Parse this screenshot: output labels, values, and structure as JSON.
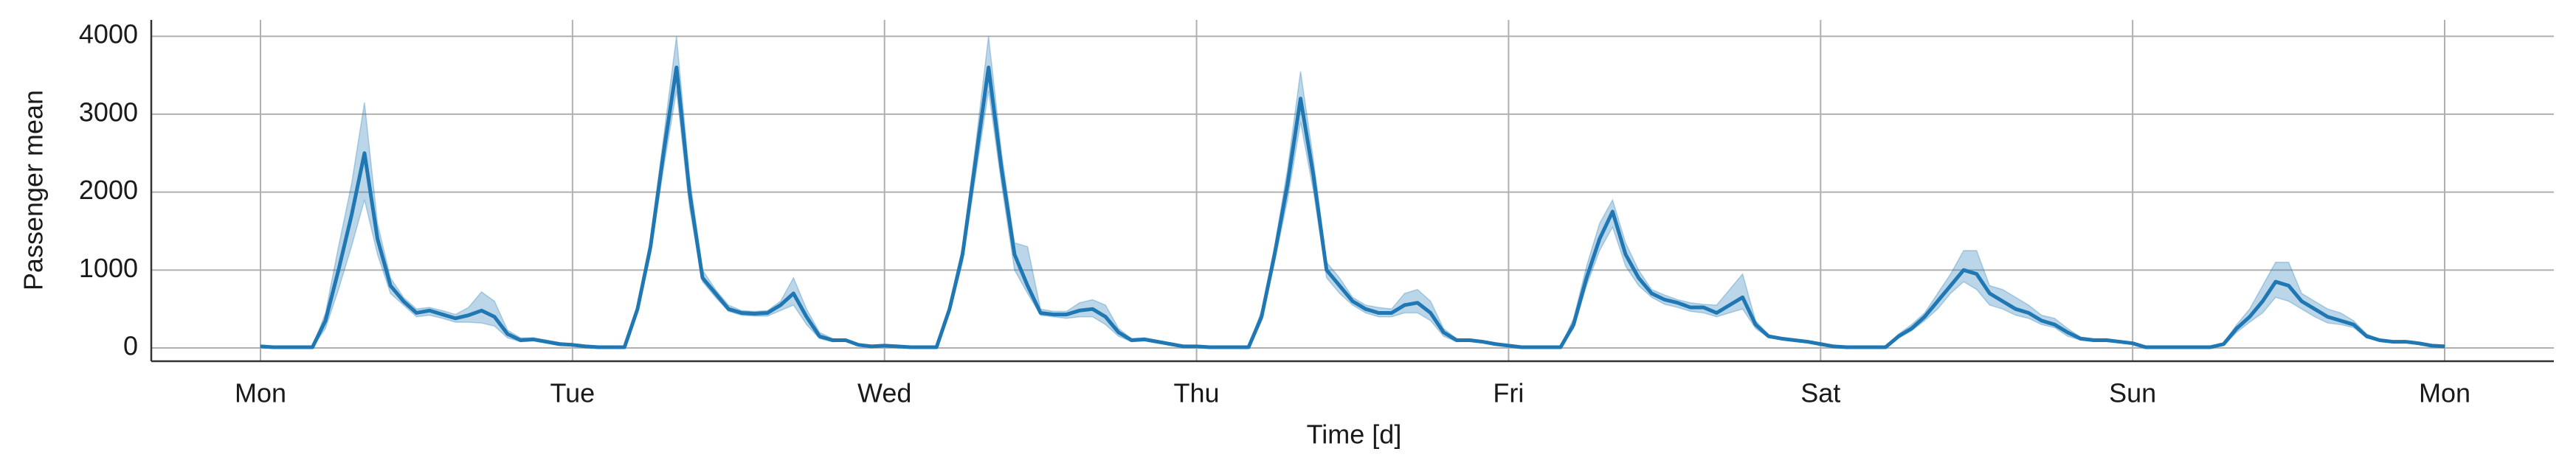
{
  "chart_data": {
    "type": "line",
    "x_label": "Time [d]",
    "y_label": "Passenger mean",
    "xlim": [
      -8.4,
      176.4
    ],
    "ylim": [
      -170,
      4210
    ],
    "xticks": [
      {
        "value": 0,
        "label": "Mon"
      },
      {
        "value": 24,
        "label": "Tue"
      },
      {
        "value": 48,
        "label": "Wed"
      },
      {
        "value": 72,
        "label": "Thu"
      },
      {
        "value": 96,
        "label": "Fri"
      },
      {
        "value": 120,
        "label": "Sat"
      },
      {
        "value": 144,
        "label": "Sun"
      },
      {
        "value": 168,
        "label": "Mon"
      }
    ],
    "yticks": [
      0,
      1000,
      2000,
      3000,
      4000
    ],
    "grid": true,
    "x": [
      0,
      1,
      2,
      3,
      4,
      5,
      6,
      7,
      8,
      9,
      10,
      11,
      12,
      13,
      14,
      15,
      16,
      17,
      18,
      19,
      20,
      21,
      22,
      23,
      24,
      25,
      26,
      27,
      28,
      29,
      30,
      31,
      32,
      33,
      34,
      35,
      36,
      37,
      38,
      39,
      40,
      41,
      42,
      43,
      44,
      45,
      46,
      47,
      48,
      49,
      50,
      51,
      52,
      53,
      54,
      55,
      56,
      57,
      58,
      59,
      60,
      61,
      62,
      63,
      64,
      65,
      66,
      67,
      68,
      69,
      70,
      71,
      72,
      73,
      74,
      75,
      76,
      77,
      78,
      79,
      80,
      81,
      82,
      83,
      84,
      85,
      86,
      87,
      88,
      89,
      90,
      91,
      92,
      93,
      94,
      95,
      96,
      97,
      98,
      99,
      100,
      101,
      102,
      103,
      104,
      105,
      106,
      107,
      108,
      109,
      110,
      111,
      112,
      113,
      114,
      115,
      116,
      117,
      118,
      119,
      120,
      121,
      122,
      123,
      124,
      125,
      126,
      127,
      128,
      129,
      130,
      131,
      132,
      133,
      134,
      135,
      136,
      137,
      138,
      139,
      140,
      141,
      142,
      143,
      144,
      145,
      146,
      147,
      148,
      149,
      150,
      151,
      152,
      153,
      154,
      155,
      156,
      157,
      158,
      159,
      160,
      161,
      162,
      163,
      164,
      165,
      166,
      167,
      168
    ],
    "series": [
      {
        "color": "#1f77b4",
        "values": [
          20,
          10,
          10,
          10,
          10,
          350,
          1000,
          1700,
          2500,
          1400,
          800,
          600,
          450,
          480,
          430,
          380,
          420,
          480,
          400,
          180,
          100,
          110,
          80,
          50,
          40,
          20,
          10,
          10,
          10,
          500,
          1300,
          2500,
          3600,
          2000,
          900,
          700,
          500,
          450,
          440,
          450,
          550,
          700,
          400,
          150,
          100,
          100,
          40,
          20,
          30,
          20,
          10,
          10,
          10,
          500,
          1200,
          2400,
          3600,
          2300,
          1200,
          800,
          450,
          430,
          430,
          480,
          500,
          400,
          200,
          100,
          110,
          80,
          50,
          20,
          20,
          10,
          10,
          10,
          10,
          400,
          1200,
          2100,
          3200,
          2200,
          1000,
          800,
          600,
          500,
          450,
          450,
          550,
          580,
          450,
          200,
          100,
          100,
          80,
          50,
          30,
          10,
          10,
          10,
          10,
          300,
          900,
          1400,
          1750,
          1200,
          900,
          700,
          620,
          580,
          520,
          520,
          450,
          550,
          650,
          300,
          150,
          120,
          100,
          80,
          50,
          20,
          10,
          10,
          10,
          10,
          150,
          250,
          400,
          600,
          800,
          1000,
          950,
          700,
          600,
          500,
          450,
          350,
          300,
          200,
          120,
          100,
          100,
          80,
          60,
          10,
          10,
          10,
          10,
          10,
          10,
          50,
          250,
          400,
          600,
          850,
          800,
          600,
          500,
          400,
          350,
          300,
          150,
          100,
          80,
          80,
          60,
          30,
          20
        ],
        "ci_upper": [
          30,
          15,
          15,
          15,
          15,
          450,
          1300,
          2100,
          3150,
          1600,
          900,
          650,
          500,
          520,
          480,
          430,
          520,
          720,
          600,
          230,
          130,
          130,
          100,
          70,
          50,
          30,
          15,
          15,
          15,
          550,
          1400,
          2700,
          4000,
          2200,
          1000,
          750,
          550,
          480,
          470,
          480,
          600,
          900,
          500,
          200,
          120,
          110,
          50,
          30,
          40,
          30,
          15,
          15,
          15,
          550,
          1300,
          2600,
          4000,
          2500,
          1350,
          1300,
          500,
          470,
          470,
          580,
          620,
          550,
          250,
          120,
          130,
          100,
          60,
          30,
          30,
          15,
          15,
          15,
          15,
          480,
          1300,
          2300,
          3550,
          2400,
          1100,
          900,
          650,
          550,
          520,
          500,
          700,
          750,
          600,
          250,
          120,
          110,
          90,
          60,
          40,
          15,
          15,
          15,
          15,
          380,
          1050,
          1600,
          1900,
          1350,
          1000,
          750,
          680,
          620,
          580,
          560,
          550,
          750,
          950,
          350,
          170,
          130,
          110,
          90,
          60,
          30,
          15,
          15,
          15,
          15,
          180,
          300,
          450,
          700,
          950,
          1250,
          1250,
          800,
          750,
          650,
          550,
          420,
          380,
          250,
          140,
          120,
          120,
          90,
          70,
          15,
          15,
          15,
          15,
          15,
          15,
          70,
          300,
          500,
          800,
          1100,
          1100,
          700,
          600,
          500,
          450,
          350,
          180,
          110,
          90,
          90,
          70,
          40,
          30
        ],
        "ci_lower": [
          10,
          5,
          5,
          5,
          5,
          250,
          750,
          1300,
          1900,
          1200,
          700,
          550,
          400,
          420,
          380,
          330,
          330,
          320,
          280,
          130,
          80,
          90,
          60,
          30,
          30,
          10,
          5,
          5,
          5,
          450,
          1200,
          2300,
          3300,
          1800,
          850,
          650,
          470,
          420,
          410,
          410,
          480,
          550,
          300,
          120,
          80,
          90,
          30,
          10,
          20,
          10,
          5,
          5,
          5,
          450,
          1100,
          2200,
          3300,
          2100,
          1000,
          700,
          420,
          400,
          380,
          400,
          400,
          300,
          150,
          80,
          90,
          60,
          40,
          10,
          10,
          5,
          5,
          5,
          5,
          350,
          1100,
          1900,
          2900,
          2000,
          900,
          700,
          550,
          450,
          400,
          400,
          450,
          450,
          350,
          150,
          80,
          90,
          70,
          40,
          20,
          5,
          5,
          5,
          5,
          250,
          800,
          1250,
          1550,
          1050,
          800,
          650,
          560,
          520,
          470,
          450,
          400,
          450,
          500,
          250,
          130,
          110,
          90,
          70,
          40,
          10,
          5,
          5,
          5,
          5,
          130,
          220,
          350,
          500,
          700,
          850,
          750,
          550,
          500,
          420,
          380,
          300,
          260,
          150,
          100,
          90,
          90,
          70,
          50,
          5,
          5,
          5,
          5,
          5,
          5,
          30,
          200,
          330,
          450,
          650,
          600,
          500,
          400,
          320,
          300,
          260,
          130,
          90,
          70,
          70,
          50,
          20,
          10
        ]
      }
    ]
  }
}
